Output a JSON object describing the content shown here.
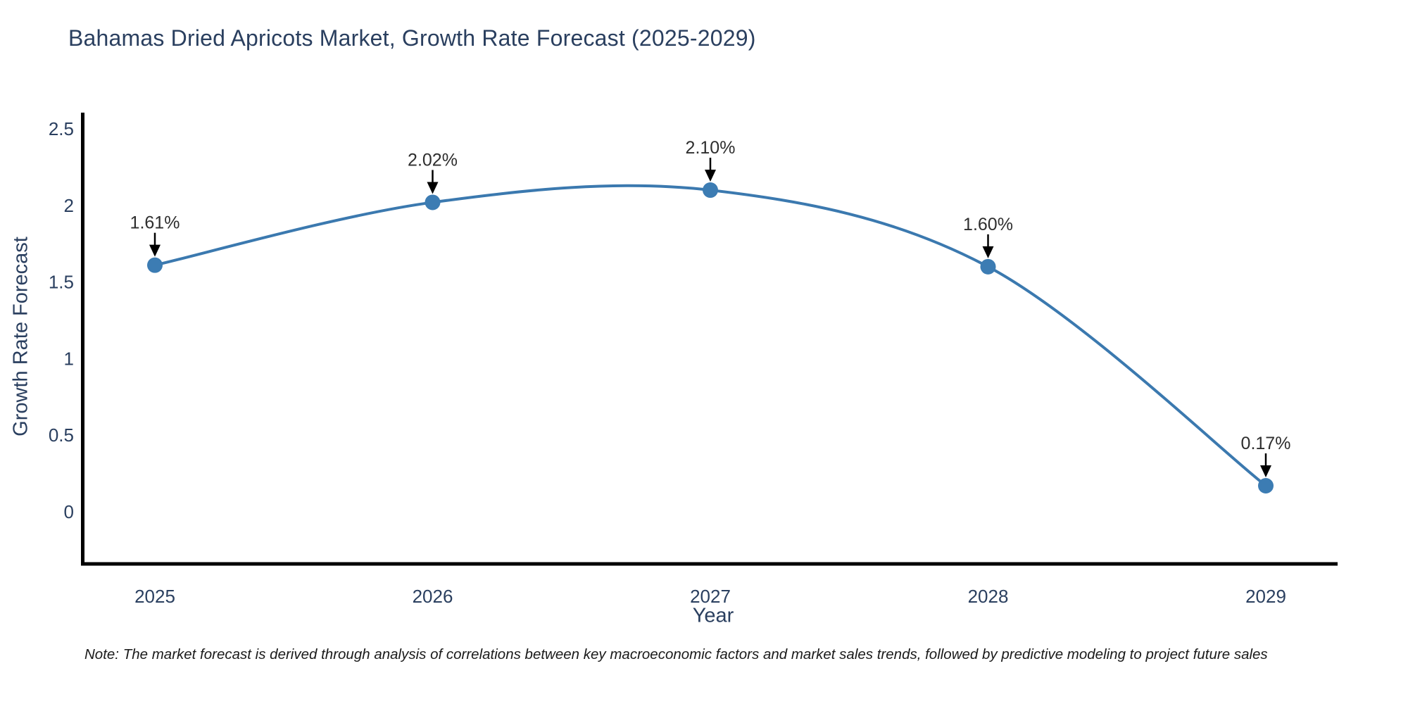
{
  "title": "Bahamas Dried Apricots Market, Growth Rate Forecast (2025-2029)",
  "note": "Note: The market forecast is derived through analysis of correlations between key macroeconomic factors and market sales trends, followed by predictive modeling to project future sales",
  "chart_data": {
    "type": "line",
    "title": "Bahamas Dried Apricots Market, Growth Rate Forecast (2025-2029)",
    "xlabel": "Year",
    "ylabel": "Growth Rate Forecast",
    "categories": [
      "2025",
      "2026",
      "2027",
      "2028",
      "2029"
    ],
    "values": [
      1.61,
      2.02,
      2.1,
      1.6,
      0.17
    ],
    "annotations": [
      "1.61%",
      "2.02%",
      "2.10%",
      "1.60%",
      "0.17%"
    ],
    "y_ticks": [
      0,
      0.5,
      1,
      1.5,
      2,
      2.5
    ],
    "y_tick_labels": [
      "0",
      "0.5",
      "1",
      "1.5",
      "2",
      "2.5"
    ],
    "ylim": [
      -0.34,
      2.55
    ],
    "grid": false,
    "line_shape": "spline",
    "legend": "none",
    "marker_size": 11,
    "colors": {
      "line": "#3b79af",
      "marker": "#3c7cb3",
      "axis_text": "#2a3f5f",
      "annotation_text": "#2e2e2e",
      "arrow": "#000000",
      "axis_line": "#000000",
      "background": "#ffffff"
    }
  }
}
